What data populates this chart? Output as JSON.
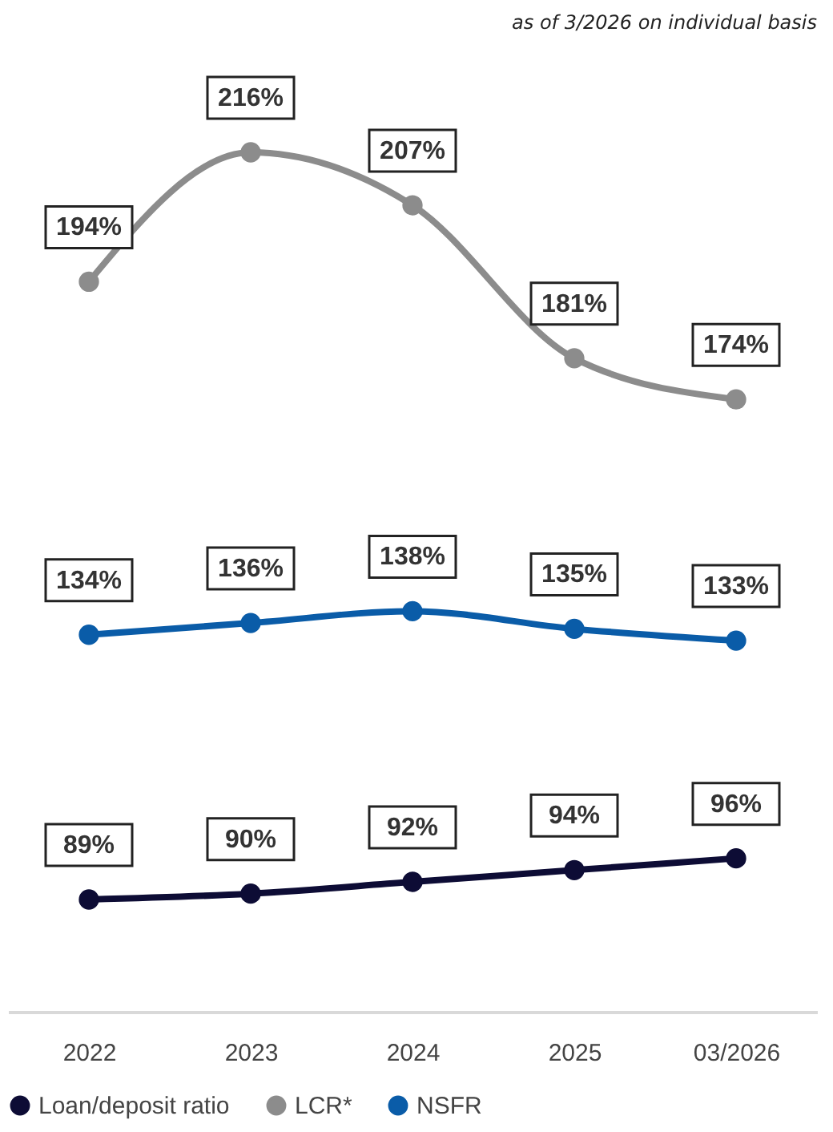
{
  "chart_data": {
    "type": "line",
    "annotations": [
      "as of 3/2026 on individual basis"
    ],
    "categories": [
      "2022",
      "2023",
      "2024",
      "2025",
      "03/2026"
    ],
    "series": [
      {
        "name": "Loan/deposit ratio",
        "color": "#0d0c35",
        "values": [
          89,
          90,
          92,
          94,
          96
        ],
        "value_labels": [
          "89%",
          "90%",
          "92%",
          "94%",
          "96%"
        ]
      },
      {
        "name": "LCR*",
        "color": "#8c8c8c",
        "values": [
          194,
          216,
          207,
          181,
          174
        ],
        "value_labels": [
          "194%",
          "216%",
          "207%",
          "181%",
          "174%"
        ]
      },
      {
        "name": "NSFR",
        "color": "#0a5ca8",
        "values": [
          134,
          136,
          138,
          135,
          133
        ],
        "value_labels": [
          "134%",
          "136%",
          "138%",
          "135%",
          "133%"
        ]
      }
    ],
    "tick_labels": "x",
    "grid": false,
    "legend": "bottom",
    "marker": "circle",
    "line_style": "solid"
  }
}
